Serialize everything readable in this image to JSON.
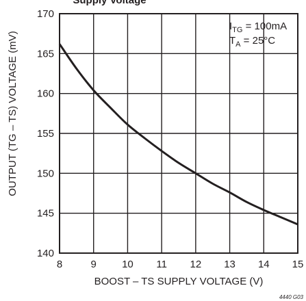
{
  "chart_data": {
    "type": "line",
    "title_fragment": "Supply Voltage",
    "xlabel": "BOOST – TS SUPPLY VOLTAGE (V)",
    "ylabel": "OUTPUT (TG – TS) VOLTAGE (mV)",
    "xlim": [
      8,
      15
    ],
    "ylim": [
      140,
      170
    ],
    "xticks": [
      8,
      9,
      10,
      11,
      12,
      13,
      14,
      15
    ],
    "yticks": [
      140,
      145,
      150,
      155,
      160,
      165,
      170
    ],
    "grid": true,
    "annotation": {
      "line1_main": "I",
      "line1_sub": "TG",
      "line1_rest": " = 100mA",
      "line2_main": "T",
      "line2_sub": "A",
      "line2_rest": " = 25°C"
    },
    "figure_id": "4440 G03",
    "series": [
      {
        "x": [
          8,
          8.5,
          9,
          9.5,
          10,
          10.5,
          11,
          11.5,
          12,
          12.5,
          13,
          13.5,
          14,
          14.5,
          15
        ],
        "values": [
          166.2,
          163.1,
          160.4,
          158.2,
          156.1,
          154.4,
          152.8,
          151.3,
          150.0,
          148.7,
          147.6,
          146.4,
          145.4,
          144.5,
          143.6
        ]
      }
    ]
  }
}
